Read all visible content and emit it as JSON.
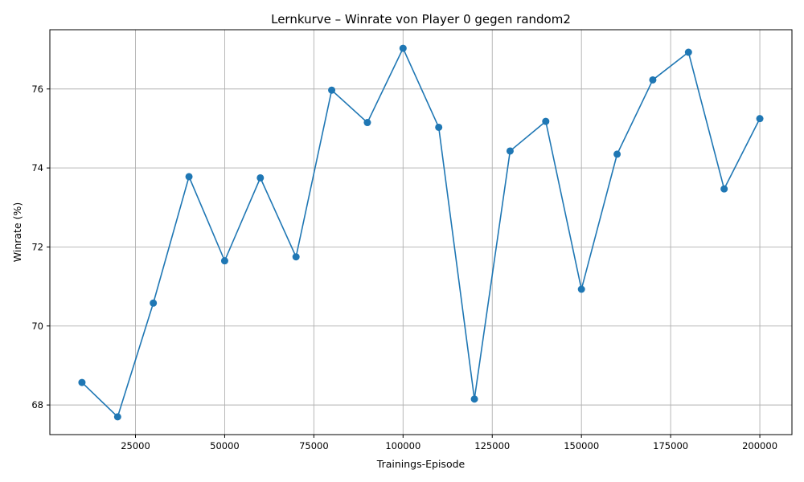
{
  "chart_data": {
    "type": "line",
    "title": "Lernkurve – Winrate von Player 0 gegen random2",
    "xlabel": "Trainings-Episode",
    "ylabel": "Winrate (%)",
    "xlim": [
      1000,
      209000
    ],
    "ylim": [
      67.25,
      77.5
    ],
    "xticks": [
      25000,
      50000,
      75000,
      100000,
      125000,
      150000,
      175000,
      200000
    ],
    "yticks": [
      68,
      70,
      72,
      74,
      76
    ],
    "grid": true,
    "series": [
      {
        "color": "#1f77b4",
        "marker": "circle",
        "x": [
          10000,
          20000,
          30000,
          40000,
          50000,
          60000,
          70000,
          80000,
          90000,
          100000,
          110000,
          120000,
          130000,
          140000,
          150000,
          160000,
          170000,
          180000,
          190000,
          200000
        ],
        "y": [
          68.57,
          67.7,
          70.58,
          73.78,
          71.65,
          73.75,
          71.75,
          75.97,
          75.15,
          77.03,
          75.03,
          68.15,
          74.43,
          75.18,
          70.93,
          74.35,
          76.23,
          76.93,
          73.47,
          75.25
        ]
      }
    ]
  }
}
